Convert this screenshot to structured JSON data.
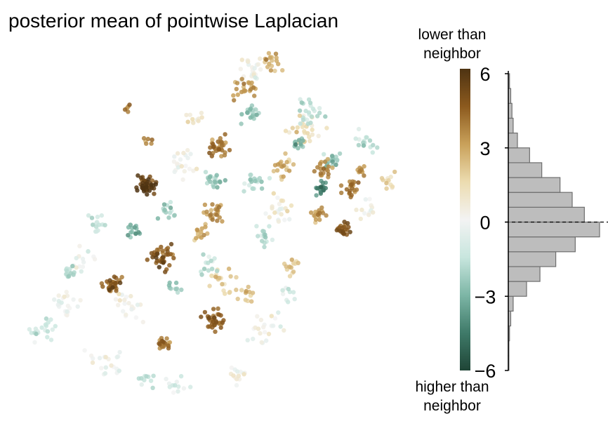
{
  "title": "posterior mean of pointwise Laplacian",
  "colorbar": {
    "top_label": "lower than\nneighbor",
    "bottom_label": "higher than\nneighbor",
    "colors": [
      "#1f4536",
      "#3f7a69",
      "#7db6a6",
      "#c8e6de",
      "#f3f3f3",
      "#ecdcb0",
      "#c9a15a",
      "#8c5a1e",
      "#4e3312"
    ],
    "range": [
      -6,
      6
    ]
  },
  "chart_data": {
    "type": "scatter",
    "title": "posterior mean of pointwise Laplacian",
    "colorbar_label_top": "lower than\nneighbor",
    "colorbar_label_bottom": "higher than\nneighbor",
    "ylim": [
      -6,
      6
    ],
    "yticks": [
      -6,
      -3,
      0,
      3,
      6
    ],
    "ytick_labels": [
      "−6",
      "−3",
      "0",
      "3",
      "6"
    ],
    "reference_line": {
      "y": 0,
      "style": "dashed"
    },
    "histogram": {
      "bin_edges": [
        -6,
        -5.4,
        -4.8,
        -4.2,
        -3.6,
        -3.0,
        -2.4,
        -1.8,
        -1.2,
        -0.6,
        0,
        0.6,
        1.2,
        1.8,
        2.4,
        3.0,
        3.6,
        4.2,
        4.8,
        5.4,
        6
      ],
      "counts": [
        1,
        1,
        2,
        4,
        8,
        30,
        52,
        78,
        110,
        150,
        125,
        105,
        85,
        55,
        35,
        15,
        8,
        6,
        4,
        2
      ]
    },
    "scatter_clusters": [
      {
        "x": 208,
        "y": 265,
        "v": 5.5,
        "n": 45,
        "s": 11
      },
      {
        "x": 230,
        "y": 365,
        "v": 4.6,
        "n": 40,
        "s": 14
      },
      {
        "x": 160,
        "y": 405,
        "v": 4.5,
        "n": 30,
        "s": 10
      },
      {
        "x": 310,
        "y": 210,
        "v": 4.0,
        "n": 32,
        "s": 12
      },
      {
        "x": 305,
        "y": 455,
        "v": 4.5,
        "n": 32,
        "s": 12
      },
      {
        "x": 490,
        "y": 325,
        "v": 4.8,
        "n": 22,
        "s": 8
      },
      {
        "x": 497,
        "y": 268,
        "v": 4.0,
        "n": 22,
        "s": 10
      },
      {
        "x": 458,
        "y": 240,
        "v": 3.6,
        "n": 22,
        "s": 10
      },
      {
        "x": 232,
        "y": 490,
        "v": 3.8,
        "n": 20,
        "s": 9
      },
      {
        "x": 345,
        "y": 125,
        "v": 3.0,
        "n": 22,
        "s": 14
      },
      {
        "x": 388,
        "y": 85,
        "v": 2.6,
        "n": 18,
        "s": 12
      },
      {
        "x": 303,
        "y": 305,
        "v": 3.2,
        "n": 26,
        "s": 14
      },
      {
        "x": 455,
        "y": 305,
        "v": 3.0,
        "n": 18,
        "s": 10
      },
      {
        "x": 515,
        "y": 243,
        "v": 3.5,
        "n": 10,
        "s": 6
      },
      {
        "x": 400,
        "y": 240,
        "v": 2.5,
        "n": 20,
        "s": 14
      },
      {
        "x": 210,
        "y": 200,
        "v": 3.5,
        "n": 6,
        "s": 5
      },
      {
        "x": 182,
        "y": 155,
        "v": 4.0,
        "n": 5,
        "s": 4
      },
      {
        "x": 283,
        "y": 333,
        "v": 2.5,
        "n": 14,
        "s": 10
      },
      {
        "x": 435,
        "y": 185,
        "v": 1.5,
        "n": 25,
        "s": 20
      },
      {
        "x": 320,
        "y": 400,
        "v": 1.8,
        "n": 20,
        "s": 14
      },
      {
        "x": 555,
        "y": 258,
        "v": 1.5,
        "n": 12,
        "s": 10
      },
      {
        "x": 420,
        "y": 380,
        "v": 1.5,
        "n": 14,
        "s": 12
      },
      {
        "x": 460,
        "y": 270,
        "v": -4.2,
        "n": 18,
        "s": 8
      },
      {
        "x": 425,
        "y": 205,
        "v": -3.0,
        "n": 12,
        "s": 8
      },
      {
        "x": 470,
        "y": 230,
        "v": -2.5,
        "n": 20,
        "s": 14
      },
      {
        "x": 355,
        "y": 160,
        "v": -2.2,
        "n": 20,
        "s": 12
      },
      {
        "x": 305,
        "y": 258,
        "v": -2.5,
        "n": 20,
        "s": 12
      },
      {
        "x": 240,
        "y": 300,
        "v": -2.2,
        "n": 14,
        "s": 10
      },
      {
        "x": 190,
        "y": 330,
        "v": -3.2,
        "n": 14,
        "s": 8
      },
      {
        "x": 365,
        "y": 260,
        "v": -2.0,
        "n": 20,
        "s": 14
      },
      {
        "x": 440,
        "y": 160,
        "v": -1.5,
        "n": 24,
        "s": 16
      },
      {
        "x": 520,
        "y": 200,
        "v": -1.8,
        "n": 16,
        "s": 12
      },
      {
        "x": 140,
        "y": 320,
        "v": -1.5,
        "n": 14,
        "s": 10
      },
      {
        "x": 100,
        "y": 390,
        "v": -1.8,
        "n": 14,
        "s": 10
      },
      {
        "x": 60,
        "y": 470,
        "v": -1.2,
        "n": 22,
        "s": 14
      },
      {
        "x": 375,
        "y": 335,
        "v": -1.8,
        "n": 16,
        "s": 12
      },
      {
        "x": 250,
        "y": 410,
        "v": -2.0,
        "n": 10,
        "s": 8
      },
      {
        "x": 300,
        "y": 380,
        "v": -1.5,
        "n": 14,
        "s": 12
      },
      {
        "x": 410,
        "y": 420,
        "v": -1.0,
        "n": 10,
        "s": 10
      },
      {
        "x": 210,
        "y": 545,
        "v": -1.5,
        "n": 10,
        "s": 10
      },
      {
        "x": 250,
        "y": 550,
        "v": -0.8,
        "n": 12,
        "s": 14
      },
      {
        "x": 150,
        "y": 520,
        "v": 0.0,
        "n": 20,
        "s": 22
      },
      {
        "x": 355,
        "y": 100,
        "v": 0.2,
        "n": 26,
        "s": 18
      },
      {
        "x": 260,
        "y": 230,
        "v": 0.0,
        "n": 22,
        "s": 18
      },
      {
        "x": 370,
        "y": 470,
        "v": 0.0,
        "n": 22,
        "s": 22
      },
      {
        "x": 180,
        "y": 440,
        "v": 0.3,
        "n": 20,
        "s": 16
      },
      {
        "x": 90,
        "y": 430,
        "v": 0.0,
        "n": 22,
        "s": 18
      },
      {
        "x": 330,
        "y": 540,
        "v": 0.2,
        "n": 14,
        "s": 14
      },
      {
        "x": 120,
        "y": 370,
        "v": 0.0,
        "n": 14,
        "s": 14
      },
      {
        "x": 400,
        "y": 300,
        "v": 0.5,
        "n": 22,
        "s": 18
      },
      {
        "x": 280,
        "y": 170,
        "v": 0.8,
        "n": 12,
        "s": 12
      },
      {
        "x": 520,
        "y": 300,
        "v": 0.3,
        "n": 12,
        "s": 12
      },
      {
        "x": 350,
        "y": 420,
        "v": 2.2,
        "n": 12,
        "s": 10
      }
    ]
  }
}
